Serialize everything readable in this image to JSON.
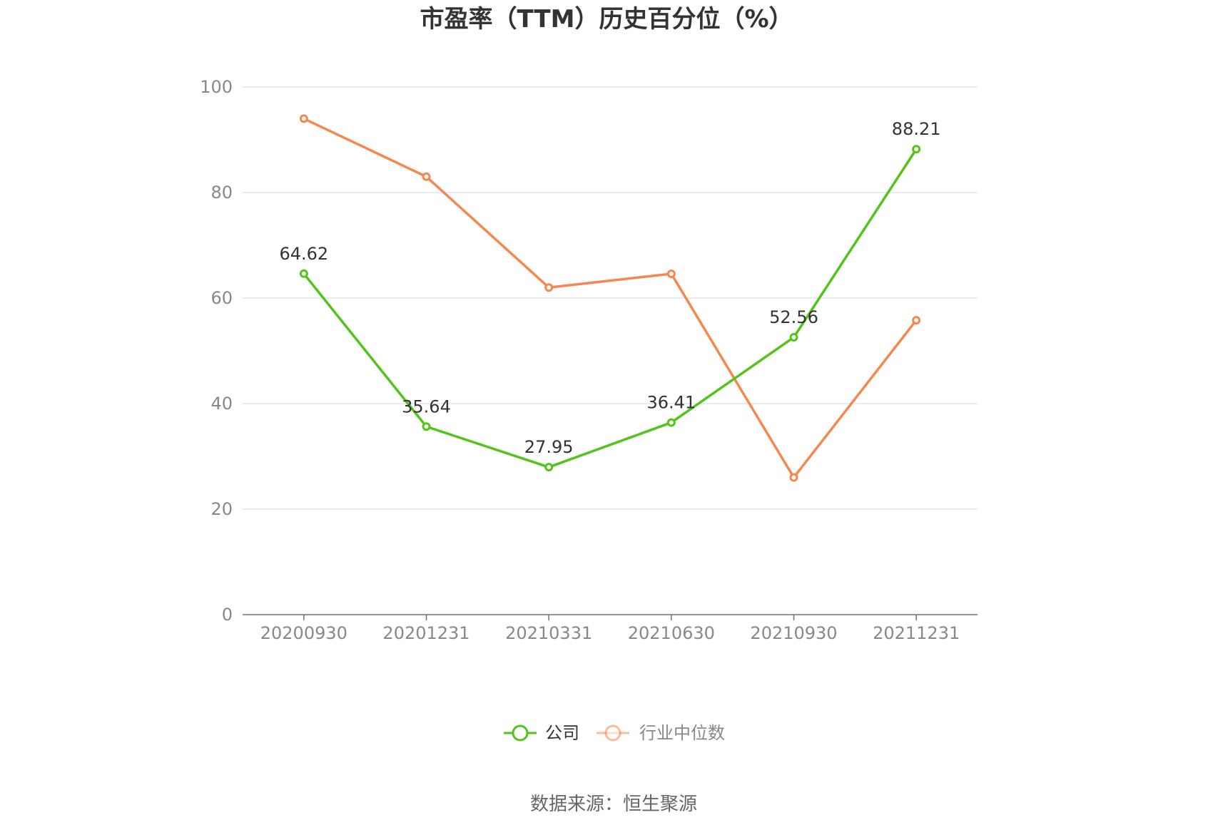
{
  "chart_data": {
    "type": "line",
    "title": "市盈率（TTM）历史百分位（%）",
    "categories": [
      "20200930",
      "20201231",
      "20210331",
      "20210630",
      "20210930",
      "20211231"
    ],
    "ylim": [
      0,
      100
    ],
    "yticks": [
      0,
      20,
      40,
      60,
      80,
      100
    ],
    "grid": true,
    "legend_position": "bottom",
    "series": [
      {
        "name": "公司",
        "color": "#52c41a",
        "values": [
          64.62,
          35.64,
          27.95,
          36.41,
          52.56,
          88.21
        ],
        "labels": [
          "64.62",
          "35.64",
          "27.95",
          "36.41",
          "52.56",
          "88.21"
        ]
      },
      {
        "name": "行业中位数",
        "color": "#f5874f",
        "values": [
          94.0,
          83.0,
          62.0,
          64.6,
          26.0,
          55.8
        ]
      }
    ],
    "source": "数据来源：恒生聚源"
  }
}
